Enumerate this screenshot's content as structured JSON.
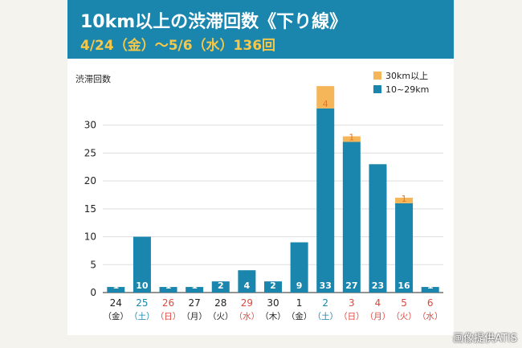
{
  "header": {
    "title": "10km以上の渋滞回数《下り線》",
    "subtitle": "4/24（金）～5/6（水）136回"
  },
  "credit": "画像提供ATIS",
  "colors": {
    "header_bg": "#1a86ad",
    "subtitle": "#f5c84a",
    "series_10_29": "#1a86ad",
    "series_30plus": "#f5b65a",
    "weekday_label": "#222222",
    "saturday_label": "#1a86ad",
    "holiday_label": "#e0463c",
    "top_value_label": "#e07a2a"
  },
  "chart_data": {
    "type": "bar",
    "stacked": true,
    "ylabel": "渋滞回数",
    "ylim": [
      0,
      35
    ],
    "yticks": [
      0,
      5,
      10,
      15,
      20,
      25,
      30
    ],
    "grid": true,
    "legend_position": "top-right",
    "categories": [
      {
        "day": "24",
        "weekday": "（金）",
        "type": "weekday"
      },
      {
        "day": "25",
        "weekday": "（土）",
        "type": "saturday"
      },
      {
        "day": "26",
        "weekday": "（日）",
        "type": "holiday"
      },
      {
        "day": "27",
        "weekday": "（月）",
        "type": "weekday"
      },
      {
        "day": "28",
        "weekday": "（火）",
        "type": "weekday"
      },
      {
        "day": "29",
        "weekday": "（水）",
        "type": "holiday"
      },
      {
        "day": "30",
        "weekday": "（木）",
        "type": "weekday"
      },
      {
        "day": "1",
        "weekday": "（金）",
        "type": "weekday"
      },
      {
        "day": "2",
        "weekday": "（土）",
        "type": "saturday"
      },
      {
        "day": "3",
        "weekday": "（日）",
        "type": "holiday"
      },
      {
        "day": "4",
        "weekday": "（月）",
        "type": "holiday"
      },
      {
        "day": "5",
        "weekday": "（火）",
        "type": "holiday"
      },
      {
        "day": "6",
        "weekday": "（水）",
        "type": "holiday"
      }
    ],
    "series": [
      {
        "name": "10~29km",
        "color": "#1a86ad",
        "values": [
          1,
          10,
          1,
          1,
          2,
          4,
          2,
          9,
          33,
          27,
          23,
          16,
          1
        ]
      },
      {
        "name": "30km以上",
        "color": "#f5b65a",
        "values": [
          0,
          0,
          0,
          0,
          0,
          0,
          0,
          0,
          4,
          1,
          0,
          1,
          0
        ]
      }
    ]
  }
}
